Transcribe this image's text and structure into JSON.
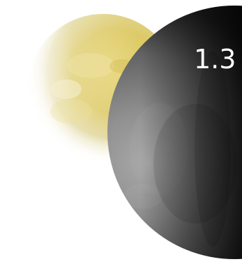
{
  "overlay_text": "1.3",
  "colors": {
    "background": "#ffffff",
    "yellow_moon": "#d8c24f",
    "gray_moon_light": "#9a9a9a",
    "gray_moon_dark": "#0d0d0d",
    "text": "#ffffff"
  },
  "icons": {
    "yellow_moon": "yellow-moon-photo",
    "gray_moon": "gray-moon-photo"
  }
}
